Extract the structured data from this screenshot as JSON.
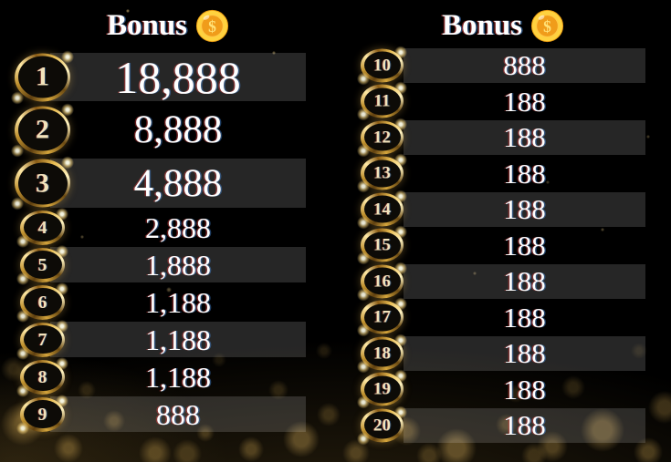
{
  "page": {
    "background": "#000000"
  },
  "colors": {
    "gold_ring": "#d3a43c",
    "rank_text": "#f2e3bb",
    "amount_text": "#ffffff",
    "row_bar": "rgba(255,255,255,0.15)",
    "coin_outer": "#ffd23e",
    "coin_inner": "#f09c1a"
  },
  "columns": [
    {
      "header": {
        "label": "Bonus",
        "coin_symbol": "$"
      },
      "rows": [
        {
          "rank": "1",
          "amount": "18,888"
        },
        {
          "rank": "2",
          "amount": "8,888"
        },
        {
          "rank": "3",
          "amount": "4,888"
        },
        {
          "rank": "4",
          "amount": "2,888"
        },
        {
          "rank": "5",
          "amount": "1,888"
        },
        {
          "rank": "6",
          "amount": "1,188"
        },
        {
          "rank": "7",
          "amount": "1,188"
        },
        {
          "rank": "8",
          "amount": "1,188"
        },
        {
          "rank": "9",
          "amount": "888"
        }
      ]
    },
    {
      "header": {
        "label": "Bonus",
        "coin_symbol": "$"
      },
      "rows": [
        {
          "rank": "10",
          "amount": "888"
        },
        {
          "rank": "11",
          "amount": "188"
        },
        {
          "rank": "12",
          "amount": "188"
        },
        {
          "rank": "13",
          "amount": "188"
        },
        {
          "rank": "14",
          "amount": "188"
        },
        {
          "rank": "15",
          "amount": "188"
        },
        {
          "rank": "16",
          "amount": "188"
        },
        {
          "rank": "17",
          "amount": "188"
        },
        {
          "rank": "18",
          "amount": "188"
        },
        {
          "rank": "19",
          "amount": "188"
        },
        {
          "rank": "20",
          "amount": "188"
        }
      ]
    }
  ]
}
